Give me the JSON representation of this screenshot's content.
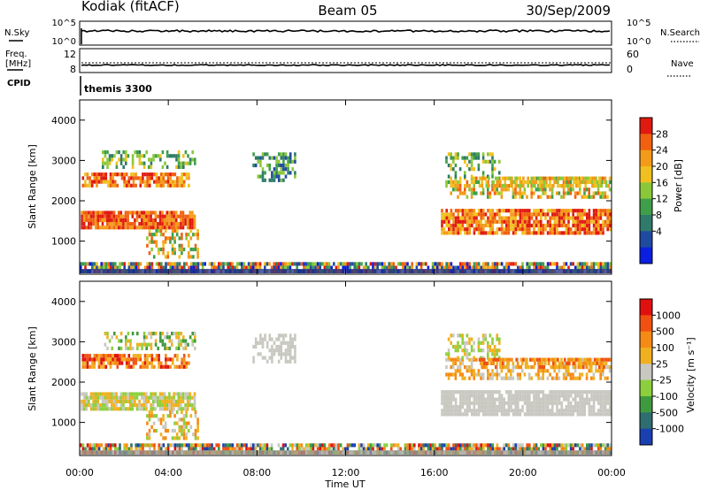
{
  "header": {
    "station": "Kodiak (fitACF)",
    "beam": "Beam 05",
    "date": "30/Sep/2009"
  },
  "top_panels": {
    "nsky_label": "N.Sky",
    "nsky_ticks": [
      "10^5",
      "10^0"
    ],
    "nsearch_label": "N.Search",
    "nsearch_ticks": [
      "10^5",
      "10^0"
    ],
    "freq_label_1": "Freq.",
    "freq_label_2": "[MHz]",
    "freq_ticks": [
      "12",
      "8"
    ],
    "nave_label": "Nave",
    "nave_ticks": [
      "60",
      "0"
    ],
    "cpid_label": "CPID",
    "cpid_value": "themis 3300"
  },
  "chart_data": [
    {
      "type": "heatmap",
      "ylabel": "Slant Range [km]",
      "yticks": [
        "4000",
        "3000",
        "2000",
        "1000"
      ],
      "ylim": [
        180,
        4500
      ],
      "colorbar_label": "Power [dB]",
      "colorbar_ticks": [
        "28",
        "24",
        "20",
        "16",
        "12",
        "8",
        "4"
      ],
      "colors": [
        "#0a1fe0",
        "#1f4aa0",
        "#2f7a6a",
        "#3f9e4a",
        "#8ac83a",
        "#f0c020",
        "#f39a1a",
        "#f06010",
        "#e01a10"
      ]
    },
    {
      "type": "heatmap",
      "ylabel": "Slant Range [km]",
      "yticks": [
        "4000",
        "3000",
        "2000",
        "1000"
      ],
      "ylim": [
        180,
        4500
      ],
      "colorbar_label": "Velocity [m s⁻¹]",
      "colorbar_ticks": [
        "1000",
        "500",
        "100",
        "25",
        "-25",
        "-100",
        "-500",
        "-1000"
      ],
      "colors": [
        "#1a3fb0",
        "#2e6e70",
        "#3f9a3f",
        "#8ccf3c",
        "#c8c8c0",
        "#f0b020",
        "#f58a15",
        "#f05010",
        "#e01010"
      ],
      "xticks": [
        "00:00",
        "04:00",
        "08:00",
        "12:00",
        "16:00",
        "20:00",
        "00:00"
      ],
      "xlabel": "Time UT"
    }
  ]
}
